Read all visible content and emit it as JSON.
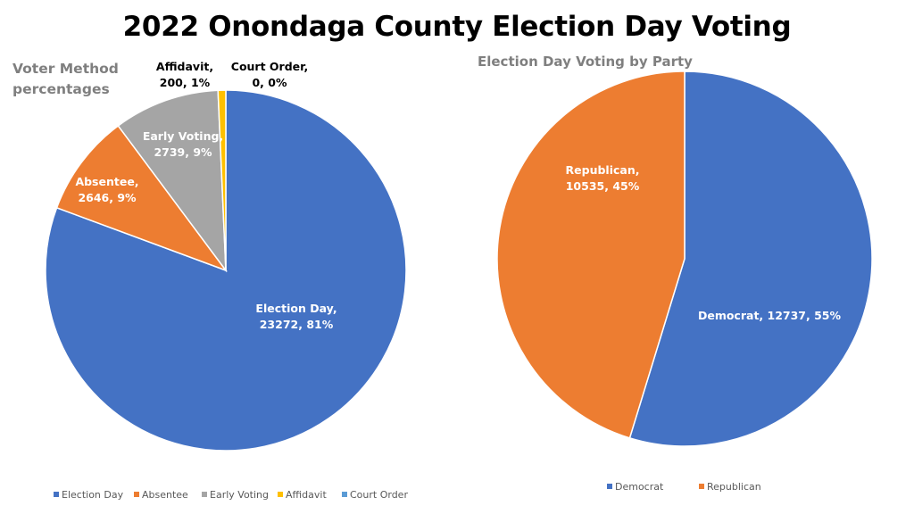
{
  "chart_data": [
    {
      "type": "pie",
      "title": "Voter Method percentages",
      "categories": [
        "Election Day",
        "Absentee",
        "Early Voting",
        "Affidavit",
        "Court Order"
      ],
      "values": [
        23272,
        2646,
        2739,
        200,
        0
      ],
      "percent_labels": [
        "81%",
        "9%",
        "9%",
        "1%",
        "0%"
      ],
      "colors": [
        "#4472c4",
        "#ed7d31",
        "#a5a5a5",
        "#ffc000",
        "#5b9bd5"
      ],
      "legend_position": "bottom"
    },
    {
      "type": "pie",
      "title": "Election Day Voting by Party",
      "categories": [
        "Democrat",
        "Republican"
      ],
      "values": [
        12737,
        10535
      ],
      "percent_labels": [
        "55%",
        "45%"
      ],
      "colors": [
        "#4472c4",
        "#ed7d31"
      ],
      "legend_position": "bottom"
    }
  ],
  "page_title": "2022 Onondaga County Election Day Voting"
}
